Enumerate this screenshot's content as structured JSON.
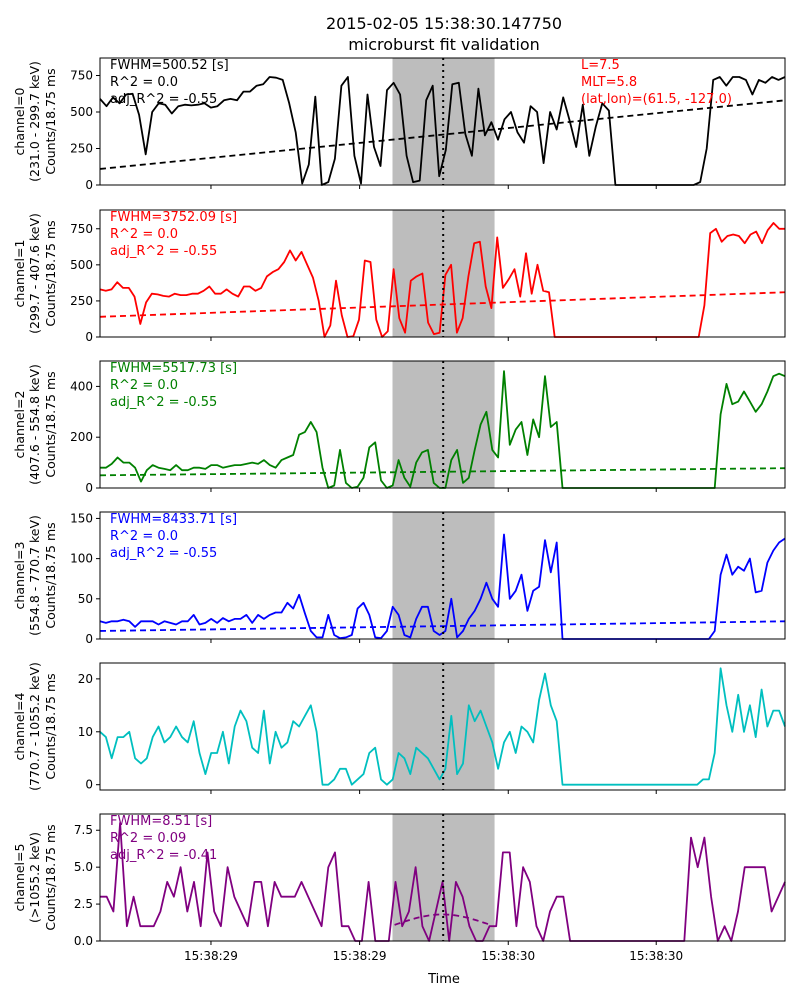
{
  "figure": {
    "title_line1": "2015-02-05 15:38:30.147750",
    "title_line2": "microburst fit validation",
    "xlabel": "Time"
  },
  "chart_data": {
    "type": "line",
    "x_tick_labels": [
      "15:38:29",
      "15:38:29",
      "15:38:30",
      "15:38:30"
    ],
    "shaded_region": true,
    "center_line": "dotted",
    "location_text": [
      "L=7.5",
      "MLT=5.8",
      "(lat,lon)=(61.5, -127.0)"
    ],
    "panels": [
      {
        "color": "#000000",
        "ylabel": [
          "channel=0",
          "(231.0 - 299.7 keV)",
          "Counts/18.75 ms"
        ],
        "ylim": [
          0,
          870
        ],
        "yticks": [
          0,
          250,
          500,
          750
        ],
        "fit_text": [
          "FWHM=500.52 [s]",
          "R^2 = 0.0",
          "adj_R^2 = -0.55"
        ],
        "fit_text_color": "#000000",
        "values": [
          590,
          540,
          600,
          560,
          620,
          625,
          480,
          210,
          500,
          560,
          550,
          490,
          540,
          550,
          545,
          550,
          560,
          530,
          540,
          580,
          590,
          580,
          640,
          640,
          680,
          690,
          740,
          735,
          720,
          560,
          360,
          10,
          140,
          605,
          0,
          20,
          180,
          680,
          740,
          200,
          10,
          620,
          260,
          130,
          650,
          700,
          620,
          200,
          20,
          30,
          580,
          680,
          60,
          240,
          690,
          700,
          350,
          200,
          660,
          340,
          430,
          310,
          450,
          500,
          360,
          290,
          540,
          500,
          150,
          500,
          380,
          600,
          440,
          260,
          550,
          200,
          400,
          560,
          510,
          0,
          0,
          0,
          0,
          0,
          0,
          0,
          0,
          0,
          0,
          0,
          0,
          0,
          20,
          250,
          720,
          740,
          680,
          740,
          740,
          720,
          620,
          720,
          700,
          740,
          720,
          740
        ],
        "fit": {
          "type": "linear",
          "start": 110,
          "end": 580
        }
      },
      {
        "color": "#ff0000",
        "ylabel": [
          "channel=1",
          "(299.7 - 407.6 keV)",
          "Counts/18.75 ms"
        ],
        "ylim": [
          0,
          880
        ],
        "yticks": [
          0,
          250,
          500,
          750
        ],
        "fit_text": [
          "FWHM=3752.09 [s]",
          "R^2 = 0.0",
          "adj_R^2 = -0.55"
        ],
        "fit_text_color": "#ff0000",
        "values": [
          330,
          320,
          330,
          380,
          340,
          340,
          280,
          90,
          240,
          300,
          295,
          285,
          280,
          300,
          290,
          290,
          300,
          300,
          320,
          350,
          300,
          300,
          330,
          300,
          280,
          350,
          350,
          320,
          340,
          420,
          450,
          470,
          520,
          600,
          530,
          590,
          500,
          410,
          250,
          0,
          80,
          390,
          150,
          0,
          5,
          120,
          530,
          520,
          120,
          0,
          40,
          470,
          130,
          30,
          390,
          420,
          440,
          100,
          20,
          30,
          430,
          500,
          30,
          130,
          420,
          650,
          660,
          350,
          200,
          690,
          340,
          400,
          470,
          280,
          580,
          300,
          500,
          320,
          310,
          0,
          0,
          0,
          0,
          0,
          0,
          0,
          0,
          0,
          0,
          0,
          0,
          0,
          0,
          0,
          0,
          0,
          0,
          0,
          0,
          0,
          0,
          0,
          0,
          0,
          0,
          220,
          720,
          750,
          660,
          700,
          710,
          700,
          650,
          710,
          730,
          650,
          740,
          790,
          750,
          750
        ],
        "fit": {
          "type": "linear",
          "start": 140,
          "end": 310
        }
      },
      {
        "color": "#008000",
        "ylabel": [
          "channel=2",
          "(407.6 - 554.8 keV)",
          "Counts/18.75 ms"
        ],
        "ylim": [
          0,
          500
        ],
        "yticks": [
          0,
          200,
          400
        ],
        "fit_text": [
          "FWHM=5517.73 [s]",
          "R^2 = 0.0",
          "adj_R^2 = -0.55"
        ],
        "fit_text_color": "#008000",
        "values": [
          80,
          80,
          95,
          120,
          100,
          100,
          80,
          25,
          70,
          90,
          80,
          75,
          70,
          90,
          70,
          70,
          80,
          80,
          75,
          90,
          90,
          80,
          85,
          90,
          90,
          95,
          100,
          95,
          110,
          90,
          80,
          110,
          120,
          130,
          210,
          220,
          260,
          220,
          80,
          0,
          10,
          150,
          20,
          0,
          5,
          40,
          160,
          180,
          30,
          0,
          10,
          110,
          40,
          5,
          100,
          140,
          150,
          20,
          0,
          0,
          110,
          150,
          20,
          40,
          150,
          250,
          300,
          150,
          120,
          460,
          170,
          230,
          260,
          130,
          270,
          200,
          440,
          240,
          260,
          0,
          0,
          0,
          0,
          0,
          0,
          0,
          0,
          0,
          0,
          0,
          0,
          0,
          0,
          0,
          0,
          0,
          0,
          0,
          0,
          0,
          0,
          0,
          0,
          0,
          0,
          0,
          290,
          410,
          330,
          340,
          380,
          340,
          300,
          330,
          380,
          440,
          450,
          440
        ],
        "fit": {
          "type": "linear",
          "start": 50,
          "end": 78
        }
      },
      {
        "color": "#0000ff",
        "ylabel": [
          "channel=3",
          "(554.8 - 770.7 keV)",
          "Counts/18.75 ms"
        ],
        "ylim": [
          0,
          158
        ],
        "yticks": [
          0,
          50,
          100,
          150
        ],
        "fit_text": [
          "FWHM=8433.71 [s]",
          "R^2 = 0.0",
          "adj_R^2 = -0.55"
        ],
        "fit_text_color": "#0000ff",
        "values": [
          22,
          20,
          22,
          22,
          24,
          22,
          15,
          22,
          22,
          22,
          18,
          22,
          20,
          18,
          22,
          22,
          30,
          18,
          20,
          25,
          20,
          26,
          22,
          25,
          25,
          30,
          20,
          30,
          25,
          30,
          33,
          33,
          45,
          38,
          55,
          32,
          10,
          2,
          2,
          30,
          5,
          1,
          2,
          5,
          38,
          45,
          30,
          2,
          1,
          10,
          40,
          30,
          5,
          2,
          25,
          40,
          40,
          10,
          5,
          10,
          50,
          2,
          10,
          25,
          35,
          50,
          70,
          50,
          40,
          130,
          50,
          60,
          80,
          35,
          60,
          65,
          123,
          83,
          120,
          0,
          0,
          0,
          0,
          0,
          0,
          0,
          0,
          0,
          0,
          0,
          0,
          0,
          0,
          0,
          0,
          0,
          0,
          0,
          0,
          0,
          0,
          0,
          0,
          0,
          0,
          10,
          80,
          105,
          80,
          90,
          85,
          100,
          58,
          60,
          95,
          110,
          120,
          125
        ],
        "fit": {
          "type": "linear",
          "start": 10,
          "end": 22
        }
      },
      {
        "color": "#00bfbf",
        "ylabel": [
          "channel=4",
          "(770.7 - 1055.2 keV)",
          "Counts/18.75 ms"
        ],
        "ylim": [
          -1,
          23
        ],
        "yticks": [
          0,
          10,
          20
        ],
        "fit_text": [],
        "fit_text_color": "#00bfbf",
        "values": [
          10,
          9,
          5,
          9,
          9,
          10,
          5,
          4,
          5,
          9,
          11,
          8,
          9,
          11,
          9,
          8,
          12,
          6,
          2,
          6,
          6,
          10,
          4,
          11,
          14,
          12,
          7,
          6,
          14,
          4,
          10,
          7,
          8,
          12,
          11,
          13,
          15,
          10,
          0,
          0,
          1,
          3,
          3,
          0,
          1,
          2,
          6,
          7,
          1,
          0,
          1,
          6,
          5,
          2,
          7,
          6,
          5,
          3,
          1,
          3,
          13,
          2,
          4,
          15,
          12,
          14,
          11,
          8,
          3,
          8,
          10,
          6,
          11,
          10,
          8,
          16,
          21,
          15,
          12,
          0,
          0,
          0,
          0,
          0,
          0,
          0,
          0,
          0,
          0,
          0,
          0,
          0,
          0,
          0,
          0,
          0,
          0,
          0,
          0,
          0,
          0,
          0,
          0,
          1,
          1,
          6,
          22,
          15,
          10,
          17,
          10,
          15,
          9,
          18,
          11,
          14,
          14,
          11
        ],
        "fit": null
      },
      {
        "color": "#800080",
        "ylabel": [
          "channel=5",
          "(>1055.2 keV)",
          "Counts/18.75 ms"
        ],
        "ylim": [
          0,
          8.6
        ],
        "yticks": [
          0.0,
          2.5,
          5.0,
          7.5
        ],
        "fit_text": [
          "FWHM=8.51 [s]",
          "R^2 = 0.09",
          "adj_R^2 = -0.41"
        ],
        "fit_text_color": "#800080",
        "values": [
          3,
          3,
          2,
          8,
          1,
          3,
          1,
          1,
          1,
          2,
          4,
          3,
          5,
          2,
          4,
          1,
          6,
          2,
          1,
          5,
          3,
          2,
          1,
          4,
          4,
          1,
          4,
          3,
          3,
          3,
          4,
          3,
          2,
          1,
          5,
          6,
          1,
          1,
          0,
          0,
          4,
          0,
          0,
          0,
          4,
          1,
          2,
          5,
          1,
          0,
          2,
          4,
          0,
          4,
          3,
          1,
          0,
          0,
          1,
          1,
          6,
          6,
          1,
          5,
          4,
          1,
          0,
          2,
          3,
          3,
          0,
          0,
          0,
          0,
          0,
          0,
          0,
          0,
          0,
          0,
          0,
          0,
          0,
          0,
          0,
          0,
          0,
          0,
          7,
          5,
          7,
          3,
          0,
          1,
          0,
          2,
          5,
          5,
          5,
          5,
          2,
          3,
          4
        ],
        "fit": {
          "type": "gaussian",
          "amplitude": 1.8,
          "center": 0.5,
          "width": 0.07,
          "range": [
            0.43,
            0.57
          ]
        }
      }
    ]
  }
}
